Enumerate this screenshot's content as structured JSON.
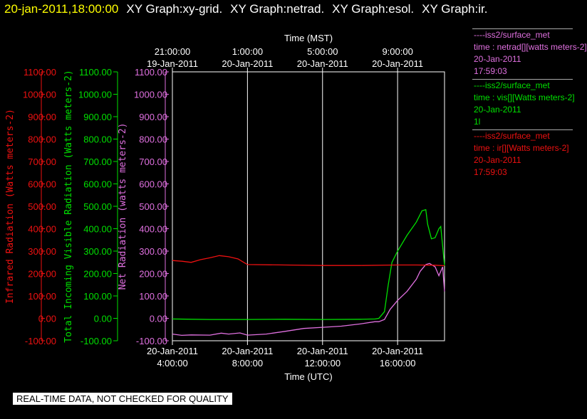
{
  "header": {
    "timestamp": "20-jan-2011,18:00:00",
    "graphs": [
      "XY Graph:xy-grid.",
      "XY Graph:netrad.",
      "XY Graph:esol.",
      "XY Graph:ir."
    ]
  },
  "legend": [
    {
      "color": "#e070e0",
      "lines": [
        "----iss2/surface_met",
        "time : netrad[][watts meters-2]",
        "20-Jan-2011",
        "17:59:03"
      ]
    },
    {
      "color": "#00e000",
      "lines": [
        "----iss2/surface_met",
        "time : vis[][Watts meters-2]",
        "20-Jan-2011",
        "1l"
      ]
    },
    {
      "color": "#ee1111",
      "lines": [
        "----iss2/surface_met",
        "time : ir[][Watts meters-2]",
        "20-Jan-2011",
        "17:59:03"
      ]
    }
  ],
  "notice": "REAL-TIME DATA, NOT CHECKED FOR QUALITY",
  "chart_data": {
    "type": "line",
    "x_top_label": "Time (MST)",
    "x_bottom_label": "Time (UTC)",
    "xlim_hours": [
      0,
      14.5
    ],
    "top_ticks": [
      {
        "x": 0,
        "time": "21:00:00",
        "date": "19-Jan-2011"
      },
      {
        "x": 4,
        "time": "1:00:00",
        "date": "20-Jan-2011"
      },
      {
        "x": 8,
        "time": "5:00:00",
        "date": "20-Jan-2011"
      },
      {
        "x": 12,
        "time": "9:00:00",
        "date": "20-Jan-2011"
      }
    ],
    "bottom_ticks": [
      {
        "x": 0,
        "date": "20-Jan-2011",
        "time": "4:00:00"
      },
      {
        "x": 4,
        "date": "20-Jan-2011",
        "time": "8:00:00"
      },
      {
        "x": 8,
        "date": "20-Jan-2011",
        "time": "12:00:00"
      },
      {
        "x": 12,
        "date": "20-Jan-2011",
        "time": "16:00:00"
      }
    ],
    "grid_x": [
      4,
      8,
      12
    ],
    "ylim": [
      -100,
      1100
    ],
    "y_ticks": [
      "1100.00",
      "1000.00",
      "900.00",
      "800.00",
      "700.00",
      "600.00",
      "500.00",
      "400.00",
      "300.00",
      "200.00",
      "100.00",
      "0.00",
      "-100.00"
    ],
    "axes": [
      {
        "label": "Infrared Radiation (Watts meters-2)",
        "color": "#ee1111"
      },
      {
        "label": "Total Incoming Visible Radiation (Watts meters-2)",
        "color": "#00e000"
      },
      {
        "label": "Net Radiation (watts meters-2)",
        "color": "#e070e0"
      }
    ],
    "series": [
      {
        "name": "netrad",
        "color": "#e070e0",
        "x": [
          0,
          0.5,
          1,
          2,
          2.6,
          3,
          3.6,
          4,
          5,
          6,
          7,
          8,
          9,
          10,
          10.8,
          11,
          11.3,
          11.6,
          12,
          12.5,
          13,
          13.2,
          13.5,
          13.7,
          14,
          14.2,
          14.4,
          14.5
        ],
        "y": [
          -70,
          -76,
          -74,
          -75,
          -66,
          -70,
          -65,
          -75,
          -70,
          -58,
          -45,
          -40,
          -35,
          -25,
          -15,
          -15,
          -5,
          40,
          80,
          120,
          175,
          210,
          240,
          245,
          230,
          190,
          230,
          120
        ]
      },
      {
        "name": "vis",
        "color": "#00e000",
        "x": [
          0,
          2,
          4,
          6,
          8,
          10,
          10.8,
          11,
          11.3,
          11.5,
          11.7,
          12,
          12.5,
          13,
          13.3,
          13.5,
          13.6,
          13.8,
          14,
          14.2,
          14.3,
          14.5
        ],
        "y": [
          -3,
          -5,
          -5,
          -4,
          -5,
          -4,
          -3,
          0,
          30,
          150,
          250,
          300,
          370,
          430,
          480,
          485,
          420,
          355,
          360,
          400,
          410,
          235
        ]
      },
      {
        "name": "ir",
        "color": "#ee1111",
        "x": [
          0,
          0.5,
          1,
          1.5,
          2,
          2.5,
          3,
          3.5,
          3.8,
          4,
          6,
          8,
          10,
          12,
          13,
          14,
          14.5
        ],
        "y": [
          258,
          255,
          250,
          262,
          270,
          280,
          275,
          265,
          250,
          240,
          238,
          236,
          236,
          238,
          238,
          237,
          235
        ]
      }
    ]
  }
}
